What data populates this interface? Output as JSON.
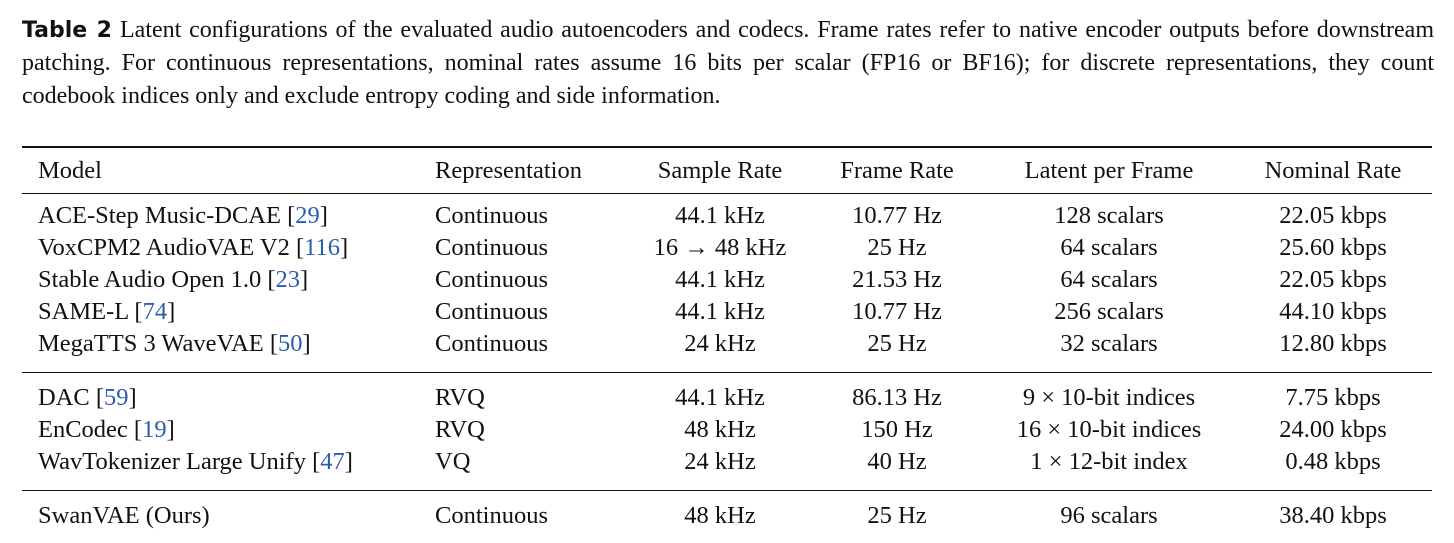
{
  "caption": {
    "label": "Table 2",
    "text": "Latent configurations of the evaluated audio autoencoders and codecs. Frame rates refer to native encoder outputs before downstream patching. For continuous representations, nominal rates assume 16 bits per scalar (FP16 or BF16); for discrete representations, they count codebook indices only and exclude entropy coding and side information."
  },
  "table": {
    "header": [
      "Model",
      "Representation",
      "Sample Rate",
      "Frame Rate",
      "Latent per Frame",
      "Nominal Rate"
    ],
    "groups": [
      [
        {
          "model": [
            "ACE-Step Music-DCAE [",
            "29",
            "]"
          ],
          "cells": [
            "Continuous",
            "44.1 kHz",
            "10.77 Hz",
            "128 scalars",
            "22.05 kbps"
          ]
        },
        {
          "model": [
            "VoxCPM2 AudioVAE V2 [",
            "116",
            "]"
          ],
          "cells": [
            "Continuous",
            "16 → 48 kHz",
            "25 Hz",
            "64 scalars",
            "25.60 kbps"
          ]
        },
        {
          "model": [
            "Stable Audio Open 1.0 [",
            "23",
            "]"
          ],
          "cells": [
            "Continuous",
            "44.1 kHz",
            "21.53 Hz",
            "64 scalars",
            "22.05 kbps"
          ]
        },
        {
          "model": [
            "SAME-L [",
            "74",
            "]"
          ],
          "cells": [
            "Continuous",
            "44.1 kHz",
            "10.77 Hz",
            "256 scalars",
            "44.10 kbps"
          ]
        },
        {
          "model": [
            "MegaTTS 3 WaveVAE [",
            "50",
            "]"
          ],
          "cells": [
            "Continuous",
            "24 kHz",
            "25 Hz",
            "32 scalars",
            "12.80 kbps"
          ]
        }
      ],
      [
        {
          "model": [
            "DAC [",
            "59",
            "]"
          ],
          "cells": [
            "RVQ",
            "44.1 kHz",
            "86.13 Hz",
            "9 × 10-bit indices",
            "7.75 kbps"
          ]
        },
        {
          "model": [
            "EnCodec [",
            "19",
            "]"
          ],
          "cells": [
            "RVQ",
            "48 kHz",
            "150 Hz",
            "16 × 10-bit indices",
            "24.00 kbps"
          ]
        },
        {
          "model": [
            "WavTokenizer Large Unify [",
            "47",
            "]"
          ],
          "cells": [
            "VQ",
            "24 kHz",
            "40 Hz",
            "1 × 12-bit index",
            "0.48 kbps"
          ]
        }
      ],
      [
        {
          "model": [
            "SwanVAE (Ours)"
          ],
          "cells": [
            "Continuous",
            "48 kHz",
            "25 Hz",
            "96 scalars",
            "38.40 kbps"
          ]
        }
      ]
    ]
  }
}
